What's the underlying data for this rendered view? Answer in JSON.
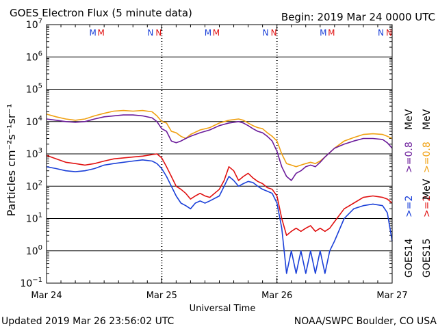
{
  "header": {
    "title": "GOES Electron Flux (5 minute data)",
    "begin": "Begin: 2019 Mar 24 0000 UTC"
  },
  "footer": {
    "updated": "Updated 2019 Mar 26 23:56:02 UTC",
    "credit": "NOAA/SWPC Boulder, CO USA"
  },
  "colors": {
    "goes14_2mev": "#1a3fd8",
    "goes15_2mev": "#e01010",
    "goes14_08mev": "#6a1a9a",
    "goes15_08mev": "#f0a010",
    "marker_m_14": "#1a3fd8",
    "marker_m_15": "#e01010"
  },
  "chart_data": {
    "type": "line",
    "title": "GOES Electron Flux (5 minute data)",
    "xlabel": "Universal Time",
    "ylabel": "Particles cm⁻²s⁻¹sr⁻¹",
    "yscale": "log",
    "ylim": [
      0.1,
      10000000
    ],
    "xlim": [
      0,
      72
    ],
    "x_unit": "hours since 2019 Mar 24 0000 UTC",
    "x_ticks": [
      {
        "x": 0,
        "label": "Mar 24"
      },
      {
        "x": 24,
        "label": "Mar 25"
      },
      {
        "x": 48,
        "label": "Mar 26"
      },
      {
        "x": 72,
        "label": "Mar 27"
      }
    ],
    "y_ticks": [
      {
        "exp": -1,
        "label": "10",
        "sup": "−1"
      },
      {
        "exp": 0,
        "label": "10",
        "sup": "0"
      },
      {
        "exp": 1,
        "label": "10",
        "sup": "1"
      },
      {
        "exp": 2,
        "label": "10",
        "sup": "2"
      },
      {
        "exp": 3,
        "label": "10",
        "sup": "3"
      },
      {
        "exp": 4,
        "label": "10",
        "sup": "4"
      },
      {
        "exp": 5,
        "label": "10",
        "sup": "5"
      },
      {
        "exp": 6,
        "label": "10",
        "sup": "6"
      },
      {
        "exp": 7,
        "label": "10",
        "sup": "7"
      }
    ],
    "threshold_line": {
      "value": 1000,
      "style": "dashed"
    },
    "day_markers": [
      {
        "day": 0,
        "m_hour": 10.5,
        "n_hour": 22.5
      },
      {
        "day": 1,
        "m_hour": 10.5,
        "n_hour": 22.5
      },
      {
        "day": 2,
        "m_hour": 10.5,
        "n_hour": 22.5
      }
    ],
    "marker_labels": {
      "m": "M",
      "n": "N"
    },
    "legend": {
      "pair_2mev": {
        "goes14": ">=2",
        "goes15": ">=2",
        "unit": "MeV"
      },
      "pair_08mev": {
        "goes14": ">=0.8",
        "goes15": ">=0.8",
        "unit": "MeV"
      },
      "satellites": {
        "goes14": "GOES14",
        "goes15": "GOES15"
      }
    },
    "series": [
      {
        "name": "GOES15 >=0.8 MeV",
        "x": [
          0,
          2,
          4,
          6,
          8,
          10,
          12,
          14,
          16,
          18,
          20,
          22,
          23,
          24,
          25,
          26,
          27,
          28,
          29,
          30,
          32,
          34,
          36,
          38,
          40,
          41,
          42,
          43,
          44,
          45,
          46,
          47,
          48,
          49,
          50,
          51,
          52,
          53,
          54,
          55,
          56,
          57,
          58,
          60,
          62,
          64,
          66,
          68,
          70,
          71,
          72
        ],
        "values": [
          17000,
          14000,
          12000,
          11000,
          12000,
          15000,
          18000,
          21000,
          22000,
          21000,
          22000,
          20000,
          15000,
          10000,
          9000,
          5000,
          4500,
          3500,
          3000,
          4000,
          5500,
          6500,
          9000,
          11000,
          12000,
          11000,
          9000,
          7500,
          6500,
          6000,
          4500,
          3500,
          2500,
          1000,
          500,
          450,
          400,
          450,
          500,
          550,
          500,
          600,
          800,
          1500,
          2500,
          3200,
          4000,
          4200,
          4000,
          3500,
          3000
        ]
      },
      {
        "name": "GOES14 >=0.8 MeV",
        "x": [
          0,
          2,
          4,
          6,
          8,
          10,
          12,
          14,
          16,
          18,
          20,
          22,
          23,
          24,
          25,
          26,
          27,
          28,
          29,
          30,
          32,
          34,
          36,
          38,
          40,
          41,
          42,
          43,
          44,
          45,
          46,
          47,
          48,
          49,
          50,
          51,
          52,
          53,
          54,
          55,
          56,
          57,
          58,
          60,
          62,
          64,
          66,
          68,
          70,
          71,
          72
        ],
        "values": [
          12000,
          11000,
          10000,
          9500,
          10000,
          12000,
          14000,
          15000,
          16000,
          16000,
          15000,
          13000,
          10000,
          6000,
          5000,
          2500,
          2200,
          2500,
          3000,
          3500,
          4500,
          5500,
          7500,
          9000,
          10000,
          9000,
          7500,
          6000,
          5000,
          4500,
          3500,
          2500,
          1200,
          400,
          200,
          150,
          250,
          300,
          400,
          450,
          400,
          550,
          800,
          1500,
          2000,
          2500,
          3000,
          3000,
          2800,
          2200,
          1500
        ]
      },
      {
        "name": "GOES15 >=2 MeV",
        "x": [
          0,
          2,
          4,
          6,
          8,
          10,
          12,
          14,
          16,
          18,
          20,
          22,
          23,
          24,
          25,
          26,
          27,
          28,
          29,
          30,
          31,
          32,
          33,
          34,
          36,
          37,
          38,
          39,
          40,
          41,
          42,
          43,
          44,
          45,
          46,
          47,
          48,
          49,
          50,
          51,
          52,
          53,
          54,
          55,
          56,
          57,
          58,
          59,
          60,
          62,
          64,
          66,
          68,
          70,
          71,
          72
        ],
        "values": [
          900,
          700,
          550,
          500,
          450,
          500,
          600,
          700,
          750,
          800,
          850,
          950,
          1000,
          750,
          400,
          200,
          100,
          80,
          60,
          40,
          50,
          60,
          50,
          45,
          80,
          150,
          400,
          300,
          150,
          200,
          250,
          180,
          140,
          120,
          90,
          80,
          50,
          10,
          3,
          4,
          5,
          4,
          5,
          6,
          4,
          5,
          4,
          5,
          8,
          20,
          30,
          45,
          50,
          45,
          40,
          30
        ]
      },
      {
        "name": "GOES14 >=2 MeV",
        "x": [
          0,
          2,
          4,
          6,
          8,
          10,
          12,
          14,
          16,
          18,
          20,
          22,
          23,
          24,
          25,
          26,
          27,
          28,
          29,
          30,
          31,
          32,
          33,
          34,
          36,
          37,
          38,
          39,
          40,
          41,
          42,
          43,
          44,
          45,
          46,
          47,
          48,
          49,
          50,
          51,
          52,
          53,
          54,
          55,
          56,
          57,
          58,
          59,
          60,
          62,
          64,
          66,
          68,
          70,
          71,
          72
        ],
        "values": [
          400,
          350,
          300,
          280,
          300,
          350,
          450,
          500,
          550,
          600,
          650,
          600,
          500,
          350,
          200,
          100,
          50,
          30,
          25,
          20,
          30,
          35,
          30,
          35,
          50,
          100,
          200,
          150,
          100,
          120,
          140,
          130,
          100,
          80,
          70,
          60,
          30,
          5,
          0.2,
          1,
          0.2,
          1,
          0.2,
          1,
          0.2,
          1,
          0.2,
          1,
          2,
          10,
          20,
          25,
          28,
          25,
          15,
          2
        ]
      }
    ]
  }
}
